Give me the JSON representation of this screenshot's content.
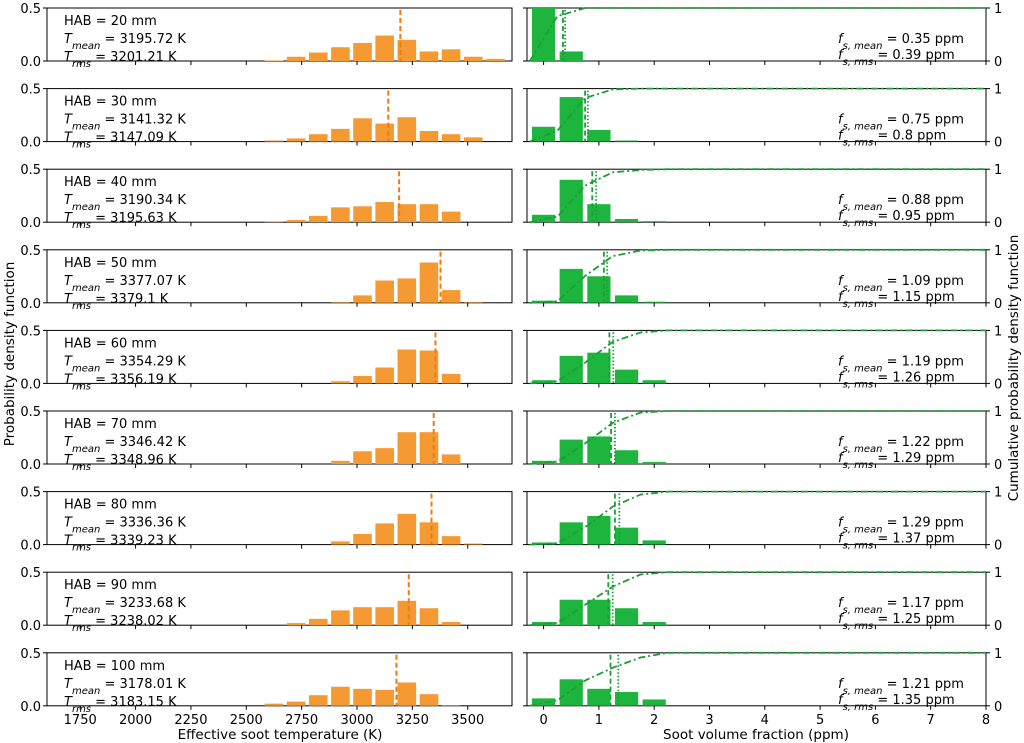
{
  "chart_data": {
    "type": "bar",
    "left_panels": {
      "xlabel": "Effective soot temperature (K)",
      "ylabel": "Probability density function",
      "xlim": [
        1600,
        3700
      ],
      "ylim": [
        0,
        0.5
      ],
      "xticks": [
        "1750",
        "2000",
        "2250",
        "2500",
        "2750",
        "3000",
        "3250",
        "3500"
      ],
      "yticks": [
        "0.0",
        "0.5"
      ],
      "bar_color": "#f59a33",
      "mean_line_color": "#f07a10",
      "bin_centers": [
        2025,
        2125,
        2225,
        2325,
        2425,
        2525,
        2625,
        2725,
        2825,
        2925,
        3025,
        3125,
        3225,
        3325,
        3425,
        3525,
        3625
      ]
    },
    "right_panels": {
      "xlabel": "Soot volume fraction (ppm)",
      "ylabel_right": "Cumulative probability density function",
      "xlim": [
        -0.3,
        8
      ],
      "ylim": [
        0,
        1.0
      ],
      "xticks": [
        "0",
        "1",
        "2",
        "3",
        "4",
        "5",
        "6",
        "7",
        "8"
      ],
      "yticks_left": [
        "0.0",
        "0.5"
      ],
      "yticks_right": [
        "0",
        "1"
      ],
      "bar_color": "#1db53d",
      "line_color": "#1a9e35",
      "bin_centers": [
        0,
        0.5,
        1.0,
        1.5,
        2.0
      ]
    },
    "rows": [
      {
        "hab": "HAB = 20 mm",
        "t_mean_val": "= 3195.72 K",
        "t_rms_val": "= 3201.21 K",
        "t_mean": 3195.72,
        "t_pdf": [
          0,
          0,
          0,
          0,
          0,
          0,
          0.005,
          0.04,
          0.08,
          0.13,
          0.17,
          0.24,
          0.2,
          0.09,
          0.11,
          0.04,
          0.02
        ],
        "fs_mean_val": "= 0.35 ppm",
        "fs_rms_val": "= 0.39 ppm",
        "fs_mean": 0.35,
        "fs_rms": 0.39,
        "fs_pdf": [
          0.5,
          0.09,
          0,
          0,
          0
        ]
      },
      {
        "hab": "HAB = 30 mm",
        "t_mean_val": "= 3141.32 K",
        "t_rms_val": "= 3147.09 K",
        "t_mean": 3141.32,
        "t_pdf": [
          0,
          0,
          0,
          0,
          0,
          0,
          0.01,
          0.03,
          0.07,
          0.12,
          0.22,
          0.17,
          0.23,
          0.1,
          0.07,
          0.04,
          0
        ],
        "fs_mean_val": "= 0.75 ppm",
        "fs_rms_val": "= 0.8 ppm",
        "fs_mean": 0.75,
        "fs_rms": 0.8,
        "fs_pdf": [
          0.14,
          0.42,
          0.11,
          0.01,
          0
        ]
      },
      {
        "hab": "HAB = 40 mm",
        "t_mean_val": "= 3190.34 K",
        "t_rms_val": "= 3195.63 K",
        "t_mean": 3190.34,
        "t_pdf": [
          0,
          0,
          0,
          0,
          0,
          0,
          0.005,
          0.02,
          0.06,
          0.14,
          0.15,
          0.19,
          0.17,
          0.17,
          0.1,
          0,
          0
        ],
        "fs_mean_val": "= 0.88 ppm",
        "fs_rms_val": "= 0.95 ppm",
        "fs_mean": 0.88,
        "fs_rms": 0.95,
        "fs_pdf": [
          0.07,
          0.4,
          0.17,
          0.03,
          0.01
        ]
      },
      {
        "hab": "HAB = 50 mm",
        "t_mean_val": "= 3377.07 K",
        "t_rms_val": "= 3379.1 K",
        "t_mean": 3377.07,
        "t_pdf": [
          0,
          0,
          0,
          0,
          0,
          0,
          0,
          0,
          0,
          0.005,
          0.07,
          0.21,
          0.23,
          0.38,
          0.12,
          0.005,
          0
        ],
        "fs_mean_val": "= 1.09 ppm",
        "fs_rms_val": "= 1.15 ppm",
        "fs_mean": 1.09,
        "fs_rms": 1.15,
        "fs_pdf": [
          0.02,
          0.32,
          0.25,
          0.07,
          0.01
        ]
      },
      {
        "hab": "HAB = 60 mm",
        "t_mean_val": "= 3354.29 K",
        "t_rms_val": "= 3356.19 K",
        "t_mean": 3354.29,
        "t_pdf": [
          0,
          0,
          0,
          0,
          0,
          0,
          0,
          0,
          0,
          0.02,
          0.07,
          0.15,
          0.32,
          0.31,
          0.09,
          0,
          0
        ],
        "fs_mean_val": "= 1.19 ppm",
        "fs_rms_val": "= 1.26 ppm",
        "fs_mean": 1.19,
        "fs_rms": 1.26,
        "fs_pdf": [
          0.03,
          0.26,
          0.29,
          0.13,
          0.03
        ]
      },
      {
        "hab": "HAB = 70 mm",
        "t_mean_val": "= 3346.42 K",
        "t_rms_val": "= 3348.96 K",
        "t_mean": 3346.42,
        "t_pdf": [
          0,
          0,
          0,
          0,
          0,
          0,
          0,
          0,
          0,
          0.03,
          0.12,
          0.15,
          0.3,
          0.3,
          0.09,
          0,
          0
        ],
        "fs_mean_val": "= 1.22 ppm",
        "fs_rms_val": "= 1.29 ppm",
        "fs_mean": 1.22,
        "fs_rms": 1.29,
        "fs_pdf": [
          0.03,
          0.23,
          0.26,
          0.13,
          0.02
        ]
      },
      {
        "hab": "HAB = 80 mm",
        "t_mean_val": "= 3336.36 K",
        "t_rms_val": "= 3339.23 K",
        "t_mean": 3336.36,
        "t_pdf": [
          0,
          0,
          0,
          0,
          0,
          0,
          0,
          0,
          0,
          0.03,
          0.1,
          0.2,
          0.29,
          0.21,
          0.08,
          0.01,
          0
        ],
        "fs_mean_val": "= 1.29 ppm",
        "fs_rms_val": "= 1.37 ppm",
        "fs_mean": 1.29,
        "fs_rms": 1.37,
        "fs_pdf": [
          0.02,
          0.21,
          0.27,
          0.16,
          0.04
        ]
      },
      {
        "hab": "HAB = 90 mm",
        "t_mean_val": "= 3233.68 K",
        "t_rms_val": "= 3238.02 K",
        "t_mean": 3233.68,
        "t_pdf": [
          0,
          0,
          0,
          0,
          0,
          0,
          0,
          0.02,
          0.06,
          0.14,
          0.17,
          0.17,
          0.23,
          0.16,
          0.03,
          0,
          0
        ],
        "fs_mean_val": "= 1.17 ppm",
        "fs_rms_val": "= 1.25 ppm",
        "fs_mean": 1.17,
        "fs_rms": 1.25,
        "fs_pdf": [
          0.03,
          0.24,
          0.24,
          0.16,
          0.03
        ]
      },
      {
        "hab": "HAB = 100 mm",
        "t_mean_val": "= 3178.01 K",
        "t_rms_val": "= 3183.15 K",
        "t_mean": 3178.01,
        "t_pdf": [
          0,
          0,
          0,
          0,
          0,
          0,
          0.02,
          0.04,
          0.1,
          0.18,
          0.16,
          0.15,
          0.22,
          0.11,
          0.005,
          0,
          0
        ],
        "fs_mean_val": "= 1.21 ppm",
        "fs_rms_val": "= 1.35 ppm",
        "fs_mean": 1.21,
        "fs_rms": 1.35,
        "fs_pdf": [
          0.07,
          0.25,
          0.16,
          0.13,
          0.06
        ]
      }
    ]
  }
}
